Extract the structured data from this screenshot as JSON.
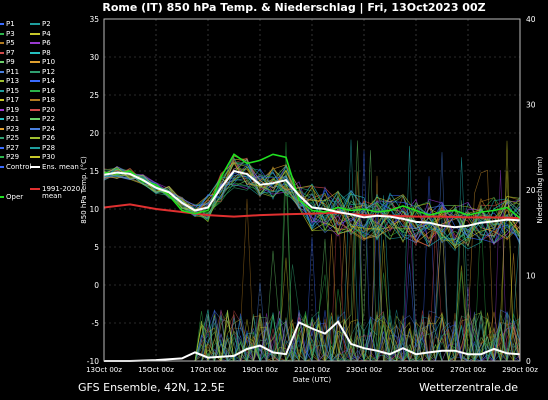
{
  "chart_data": {
    "type": "line",
    "title": "Rome  (IT)  850 hPa Temp. & Niederschlag | Fri, 13Oct2023 00Z",
    "xlabel": "Date (UTC)",
    "ylabel_left": "850 hPa Temp. (°C)",
    "ylabel_right": "Niederschlag (mm)",
    "x_ticks": [
      "13Oct 00z",
      "15Oct 00z",
      "17Oct 00z",
      "19Oct 00z",
      "21Oct 00z",
      "23Oct 00z",
      "25Oct 00z",
      "27Oct 00z",
      "29Oct 00z"
    ],
    "x_range_days": [
      0,
      16
    ],
    "ylim_left": [
      -10,
      35
    ],
    "ylim_right": [
      0,
      40
    ],
    "y_ticks_left": [
      "35",
      "30",
      "25",
      "20",
      "15",
      "10",
      "5",
      "0",
      "-5",
      "-10"
    ],
    "y_ticks_right": [
      "40",
      "30",
      "20",
      "10",
      "0"
    ],
    "grid": true,
    "legend": {
      "left_column": [
        "P1",
        "P3",
        "P5",
        "P7",
        "P9",
        "P11",
        "P13",
        "P15",
        "P17",
        "P19",
        "P21",
        "P23",
        "P25",
        "P27",
        "P29",
        "Control"
      ],
      "right_column": [
        "P2",
        "P4",
        "P6",
        "P8",
        "P10",
        "P12",
        "P14",
        "P16",
        "P18",
        "P20",
        "P22",
        "P24",
        "P26",
        "P28",
        "P30",
        "Ens. mean"
      ],
      "climatology_label": "1991-2020",
      "climatology_label2": "mean",
      "oper_label": "Oper"
    },
    "series": [
      {
        "name": "Ens. mean",
        "axis": "left",
        "color": "#ffffff",
        "x": [
          0,
          0.5,
          1,
          1.5,
          2,
          2.5,
          3,
          3.5,
          4,
          4.5,
          5,
          5.5,
          6,
          6.5,
          7,
          7.5,
          8,
          8.5,
          9,
          9.5,
          10,
          10.5,
          11,
          11.5,
          12,
          12.5,
          13,
          13.5,
          14,
          14.5,
          15,
          15.5,
          16
        ],
        "values": [
          14.5,
          14.8,
          14.6,
          13.8,
          12.8,
          12.2,
          10.8,
          9.8,
          10.2,
          12.8,
          15.0,
          14.6,
          13.2,
          13.4,
          13.8,
          11.8,
          10.2,
          10.0,
          9.6,
          9.3,
          8.9,
          9.1,
          9.0,
          8.7,
          8.3,
          8.2,
          7.8,
          7.6,
          7.8,
          8.2,
          8.4,
          8.6,
          8.5
        ]
      },
      {
        "name": "1991-2020 mean",
        "axis": "left",
        "color": "#e03030",
        "x": [
          0,
          1,
          2,
          3,
          4,
          5,
          6,
          7,
          8,
          9,
          10,
          11,
          12,
          13,
          14,
          15,
          16
        ],
        "values": [
          10.2,
          10.6,
          10.0,
          9.6,
          9.2,
          9.0,
          9.2,
          9.3,
          9.4,
          9.5,
          9.2,
          9.1,
          9.0,
          9.0,
          8.9,
          8.9,
          8.8
        ]
      },
      {
        "name": "Oper",
        "axis": "left",
        "color": "#20e020",
        "x": [
          0,
          0.5,
          1,
          1.5,
          2,
          2.5,
          3,
          3.5,
          4,
          4.5,
          5,
          5.5,
          6,
          6.5,
          7,
          7.5,
          8,
          8.5,
          9,
          9.5,
          10,
          10.5,
          11,
          11.5,
          12,
          12.5,
          13,
          13.5,
          14,
          14.5,
          15,
          15.5,
          16
        ],
        "values": [
          14.8,
          14.6,
          15.0,
          13.6,
          13.2,
          11.8,
          9.8,
          9.4,
          9.8,
          14.2,
          17.2,
          16.0,
          16.4,
          17.2,
          16.8,
          11.2,
          9.8,
          9.6,
          10.2,
          9.8,
          10.0,
          9.6,
          9.8,
          10.4,
          9.8,
          9.2,
          9.6,
          9.8,
          9.2,
          9.6,
          9.8,
          10.2,
          8.8
        ]
      },
      {
        "name": "Ens. mean",
        "axis": "right",
        "color": "#ffffff",
        "x": [
          0,
          1,
          2,
          3,
          3.5,
          4,
          4.5,
          5,
          5.5,
          6,
          6.5,
          7,
          7.5,
          8,
          8.5,
          9,
          9.5,
          10,
          10.5,
          11,
          11.5,
          12,
          12.5,
          13,
          13.5,
          14,
          14.5,
          15,
          15.5,
          16
        ],
        "values": [
          0,
          0,
          0.1,
          0.3,
          1.0,
          0.4,
          0.5,
          0.6,
          1.4,
          1.8,
          1.0,
          0.8,
          4.5,
          3.8,
          3.2,
          4.6,
          2.0,
          1.5,
          1.2,
          0.8,
          1.5,
          0.8,
          1.0,
          1.2,
          1.2,
          0.8,
          0.8,
          1.4,
          0.9,
          0.8
        ]
      }
    ]
  },
  "footer": {
    "left": "GFS Ensemble, 42N, 12.5E",
    "right": "Wetterzentrale.de"
  }
}
